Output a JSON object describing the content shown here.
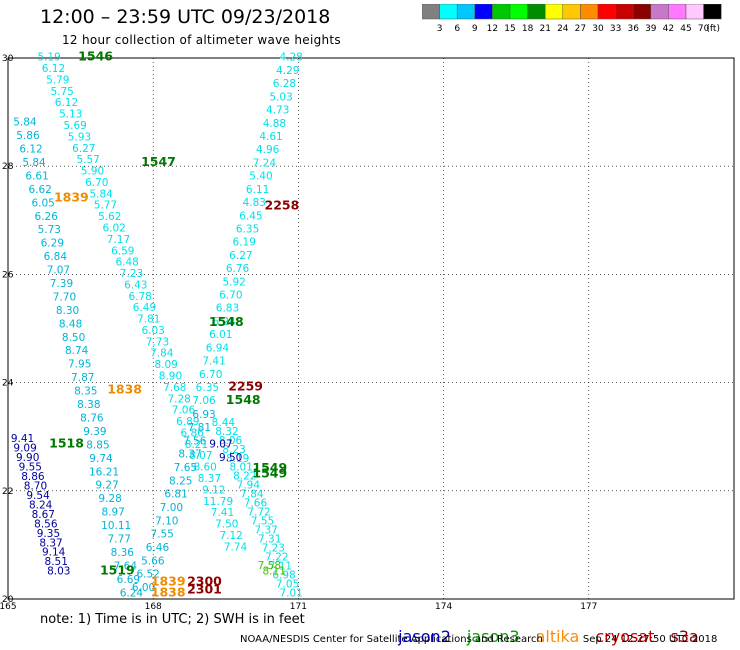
{
  "header": {
    "title": "12:00 – 23:59 UTC 09/23/2018",
    "subtitle": "12 hour collection of altimeter wave heights"
  },
  "colorbar": {
    "labels": [
      "3",
      "6",
      "9",
      "12",
      "15",
      "18",
      "21",
      "24",
      "27",
      "30",
      "33",
      "36",
      "39",
      "42",
      "45",
      "70"
    ],
    "unit": "(ft)",
    "colors": [
      "#808080",
      "#00ffff",
      "#00c8ff",
      "#0000ff",
      "#00c800",
      "#00ff00",
      "#008c00",
      "#ffff00",
      "#ffc800",
      "#ff8c00",
      "#ff0000",
      "#c80000",
      "#8c0000",
      "#c878c8",
      "#ff78ff",
      "#ffc8ff",
      "#000000"
    ]
  },
  "map": {
    "x_ticks": [
      "165",
      "168",
      "171",
      "174",
      "177"
    ],
    "y_ticks": [
      "30",
      "28",
      "26",
      "24",
      "22",
      "20"
    ],
    "lon_range": [
      165,
      180
    ],
    "lat_range": [
      20,
      30
    ]
  },
  "colors": {
    "cyan": "#00e0e8",
    "teal": "#00b4d8",
    "blue": "#0000a0",
    "green": "#007800",
    "lime": "#40c000",
    "orange": "#f08c00",
    "darkred": "#8c0000"
  },
  "passes": [
    {
      "label": "1546",
      "lon": 166.45,
      "lat": 29.95,
      "color": "green"
    },
    {
      "label": "1547",
      "lon": 167.75,
      "lat": 28.0,
      "color": "green"
    },
    {
      "label": "1839",
      "lon": 165.95,
      "lat": 27.35,
      "color": "orange"
    },
    {
      "label": "2258",
      "lon": 170.3,
      "lat": 27.2,
      "color": "darkred"
    },
    {
      "label": "1548",
      "lon": 169.15,
      "lat": 25.05,
      "color": "green"
    },
    {
      "label": "2259",
      "lon": 169.55,
      "lat": 23.85,
      "color": "darkred"
    },
    {
      "label": "1838",
      "lon": 167.05,
      "lat": 23.8,
      "color": "orange"
    },
    {
      "label": "1548",
      "lon": 169.5,
      "lat": 23.6,
      "color": "green"
    },
    {
      "label": "1518",
      "lon": 165.85,
      "lat": 22.8,
      "color": "green"
    },
    {
      "label": "1549",
      "lon": 170.05,
      "lat": 22.35,
      "color": "green"
    },
    {
      "label": "1549",
      "lon": 170.05,
      "lat": 22.25,
      "color": "green"
    },
    {
      "label": "1519",
      "lon": 166.9,
      "lat": 20.45,
      "color": "green"
    },
    {
      "label": "1839",
      "lon": 167.95,
      "lat": 20.25,
      "color": "orange"
    },
    {
      "label": "1838",
      "lon": 167.95,
      "lat": 20.05,
      "color": "orange"
    },
    {
      "label": "2300",
      "lon": 168.7,
      "lat": 20.25,
      "color": "darkred"
    },
    {
      "label": "2301",
      "lon": 168.7,
      "lat": 20.1,
      "color": "darkred"
    }
  ],
  "tracks": [
    {
      "name": "track-A",
      "color": "cyan",
      "start": [
        165.85,
        29.95
      ],
      "end": [
        169.7,
        20.9
      ],
      "values": [
        "5.19",
        "6.12",
        "5.79",
        "5.75",
        "6.12",
        "5.13",
        "5.69",
        "5.93",
        "6.27",
        "5.57",
        "5.90",
        "6.70",
        "5.84",
        "5.77",
        "5.62",
        "6.02",
        "7.17",
        "6.59",
        "6.48",
        "7.23",
        "6.43",
        "6.78",
        "6.49",
        "7.81",
        "6.03",
        "7.73",
        "7.84",
        "8.09",
        "8.90",
        "7.68",
        "7.28",
        "7.06",
        "6.89",
        "6.86",
        "8.21",
        "8.07",
        "8.60",
        "8.37",
        "9.12",
        "11.79",
        "7.41",
        "7.50",
        "7.12",
        "7.74"
      ]
    },
    {
      "name": "track-B",
      "color": "teal",
      "start": [
        165.35,
        28.75
      ],
      "end": [
        167.55,
        20.05
      ],
      "values": [
        "5.84",
        "5.86",
        "6.12",
        "5.84",
        "6.61",
        "6.62",
        "6.05",
        "6.26",
        "5.73",
        "6.29",
        "6.84",
        "7.07",
        "7.39",
        "7.70",
        "8.30",
        "8.48",
        "8.50",
        "8.74",
        "7.95",
        "7.87",
        "8.35",
        "8.38",
        "8.76",
        "9.39",
        "8.85",
        "9.74",
        "16.21",
        "9.27",
        "9.28",
        "8.97",
        "10.11",
        "7.77",
        "8.36",
        "7.64",
        "6.69",
        "6.24"
      ]
    },
    {
      "name": "track-C",
      "color": "cyan",
      "start": [
        170.85,
        29.95
      ],
      "end": [
        169.05,
        23.6
      ],
      "values": [
        "4.28",
        "4.29",
        "6.28",
        "5.03",
        "4.73",
        "4.88",
        "4.61",
        "4.96",
        "7.24",
        "5.40",
        "6.11",
        "4.83",
        "6.45",
        "6.35",
        "6.19",
        "6.27",
        "6.76",
        "5.92",
        "6.70",
        "6.83",
        "6.24",
        "6.01",
        "6.94",
        "7.41",
        "6.70",
        "6.35",
        "7.06"
      ]
    },
    {
      "name": "track-D",
      "color": "teal",
      "start": [
        169.05,
        23.35
      ],
      "end": [
        167.8,
        20.15
      ],
      "values": [
        "6.93",
        "7.81",
        "7.56",
        "8.37",
        "7.65",
        "8.25",
        "6.81",
        "7.00",
        "7.10",
        "7.55",
        "6.46",
        "5.66",
        "6.52",
        "6.00"
      ]
    },
    {
      "name": "track-E",
      "color": "blue",
      "start": [
        165.3,
        22.9
      ],
      "end": [
        166.05,
        20.45
      ],
      "values": [
        "9.41",
        "9.09",
        "9.90",
        "9.55",
        "8.86",
        "8.70",
        "9.54",
        "8.24",
        "8.67",
        "8.56",
        "9.35",
        "8.37",
        "9.14",
        "8.51",
        "8.03"
      ]
    },
    {
      "name": "track-F",
      "color": "cyan",
      "start": [
        169.45,
        23.2
      ],
      "end": [
        170.85,
        20.05
      ],
      "values": [
        "8.44",
        "8.32",
        "8.06",
        "8.23",
        "8.19",
        "8.01",
        "8.22",
        "7.94",
        "7.84",
        "7.66",
        "7.72",
        "7.55",
        "7.37",
        "7.31",
        "7.23",
        "7.22",
        "7.11",
        "6.98",
        "7.05",
        "7.01"
      ]
    },
    {
      "name": "track-G",
      "color": "blue",
      "start": [
        169.4,
        22.8
      ],
      "end": [
        169.6,
        22.55
      ],
      "values": [
        "9.07",
        "9.50"
      ]
    },
    {
      "name": "track-H",
      "color": "lime",
      "start": [
        170.4,
        20.55
      ],
      "end": [
        170.5,
        20.45
      ],
      "values": [
        "7.58",
        "8.11"
      ]
    }
  ],
  "footer": {
    "note": "note: 1) Time is in UTC; 2) SWH is in feet",
    "legend": [
      {
        "name": "jason2",
        "color": "#0000c8"
      },
      {
        "name": "jason3",
        "color": "#00a000"
      },
      {
        "name": "altika",
        "color": "#ff8c00"
      },
      {
        "name": "cryosat",
        "color": "#c80000"
      },
      {
        "name": "s3a",
        "color": "#8c0000"
      }
    ],
    "credit": "NOAA/NESDIS Center for Satellite Applications and Research",
    "timestamp": "Sep 24 12:27:50 UTC 2018"
  }
}
